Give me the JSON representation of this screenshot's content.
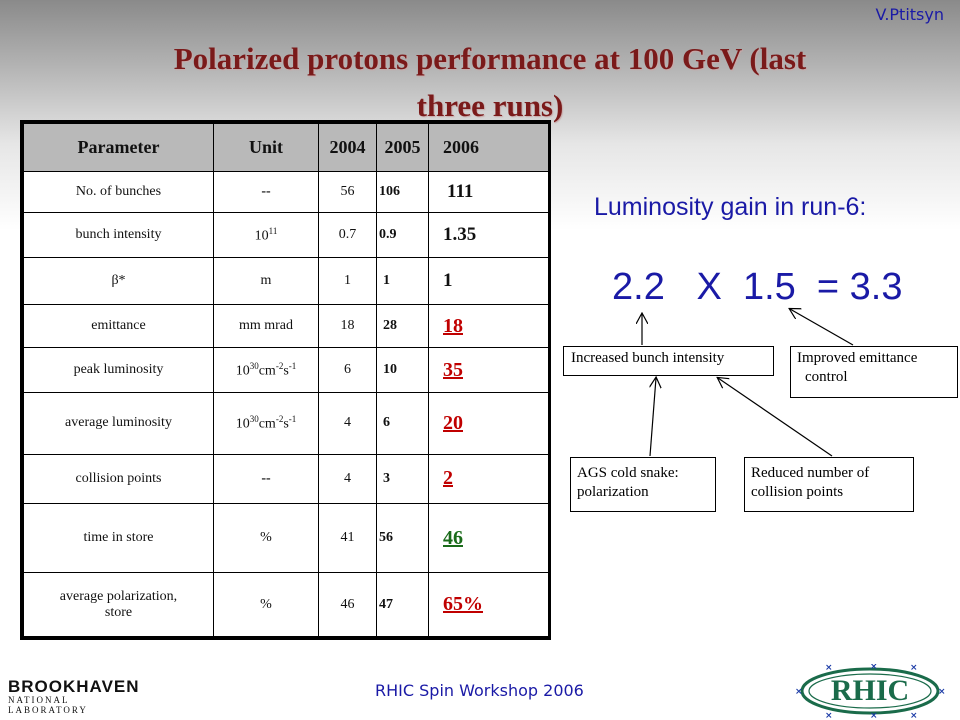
{
  "author": "V.Ptitsyn",
  "title": {
    "line1": "Polarized protons performance at 100 GeV (last",
    "line2": "three runs)"
  },
  "table": {
    "headers": [
      "Parameter",
      "Unit",
      "2004",
      "2005",
      "2006"
    ],
    "rows": [
      {
        "param": "No. of bunches",
        "unit": "--",
        "y2004": "56",
        "y2005": "106",
        "y2006": "111"
      },
      {
        "param": "bunch intensity",
        "unit_base": "10",
        "unit_exp": "11",
        "y2004": "0.7",
        "y2005": "0.9",
        "y2006": "1.35"
      },
      {
        "param": "β*",
        "unit": "m",
        "y2004": "1",
        "y2005": "1",
        "y2006": "1"
      },
      {
        "param": "emittance",
        "unit": "mm mrad",
        "y2004": "18",
        "y2005": "28",
        "y2006": "18"
      },
      {
        "param": "peak luminosity",
        "unit_base": "10",
        "unit_exp": "30",
        "unit_mid": "cm",
        "unit_exp2": "-2",
        "unit_mid2": "s",
        "unit_exp3": "-1",
        "y2004": "6",
        "y2005": "10",
        "y2006": "35"
      },
      {
        "param": "average luminosity",
        "unit_base": "10",
        "unit_exp": "30",
        "unit_mid": "cm",
        "unit_exp2": "-2",
        "unit_mid2": "s",
        "unit_exp3": "-1",
        "y2004": "4",
        "y2005": "6",
        "y2006": "20"
      },
      {
        "param": "collision points",
        "unit": "--",
        "y2004": "4",
        "y2005": "3",
        "y2006": "2"
      },
      {
        "param": "time in store",
        "unit": "%",
        "y2004": "41",
        "y2005": "56",
        "y2006": "46"
      },
      {
        "param_line1": "average polarization,",
        "param_line2": "store",
        "unit": "%",
        "y2004": "46",
        "y2005": "47",
        "y2006": "65%"
      }
    ]
  },
  "luminosity": {
    "title": "Luminosity gain in run-6:",
    "equation": "2.2   X  1.5  = 3.3"
  },
  "annotations": {
    "increased_bunch": "Increased bunch intensity",
    "improved_emittance_line1": "Improved emittance",
    "improved_emittance_line2": "control",
    "ags_line1": "AGS cold snake:",
    "ags_line2": "polarization",
    "reduced_line1": "Reduced number of",
    "reduced_line2": "collision points"
  },
  "footer": "RHIC Spin  Workshop 2006",
  "logos": {
    "bnl_name": "BROOKHAVEN",
    "bnl_sub": "NATIONAL LABORATORY",
    "rhic": "RHIC"
  }
}
